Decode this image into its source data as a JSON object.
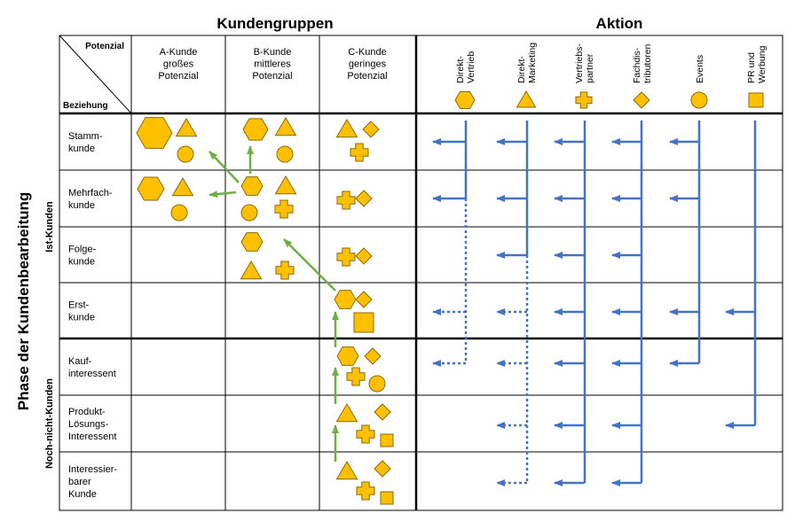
{
  "titles": {
    "left": "Kundengruppen",
    "right": "Aktion"
  },
  "vertical": {
    "main": "Phase der Kundenbearbeitung",
    "ist": "Ist-Kunden",
    "noch": "Noch-nicht-Kunden"
  },
  "corner": {
    "top": "Potenzial",
    "bottom": "Beziehung"
  },
  "groups": [
    [
      "A-Kunde",
      "großes",
      "Potenzial"
    ],
    [
      "B-Kunde",
      "mittleres",
      "Potenzial"
    ],
    [
      "C-Kunde",
      "geringes",
      "Potenzial"
    ]
  ],
  "actions": [
    {
      "lines": [
        "Direkt-",
        "Vertrieb"
      ],
      "icon": "hexagon-icon"
    },
    {
      "lines": [
        "Direkt-",
        "Marketing"
      ],
      "icon": "triangle-icon"
    },
    {
      "lines": [
        "Vertriebs-",
        "partner"
      ],
      "icon": "cross-icon"
    },
    {
      "lines": [
        "Fachdis-",
        "tributoren"
      ],
      "icon": "diamond-icon"
    },
    {
      "lines": [
        "Events"
      ],
      "icon": "circle-icon"
    },
    {
      "lines": [
        "PR und",
        "Werbung"
      ],
      "icon": "square-icon"
    }
  ],
  "phases": [
    [
      "Stamm-",
      "kunde"
    ],
    [
      "Mehrfach-",
      "kunde"
    ],
    [
      "Folge-",
      "kunde"
    ],
    [
      "Erst-",
      "kunde"
    ],
    [
      "Kauf-",
      "interessent"
    ],
    [
      "Produkt-",
      "Lösungs-",
      "Interessent"
    ],
    [
      "Interessier-",
      "barer",
      "Kunde"
    ]
  ],
  "colors": {
    "shape_fill": "#FFC000",
    "shape_stroke": "#8C6A00",
    "action_arrow": "#4472C4",
    "progression_arrow": "#70AD47"
  }
}
